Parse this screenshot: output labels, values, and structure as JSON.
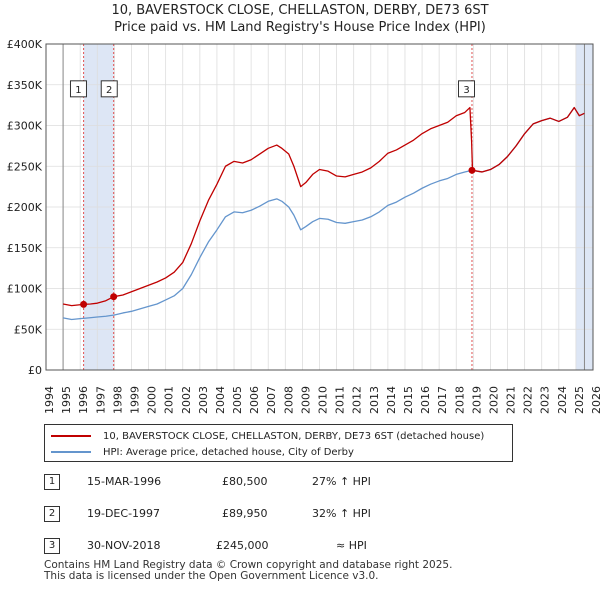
{
  "title_line1": "10, BAVERSTOCK CLOSE, CHELLASTON, DERBY, DE73 6ST",
  "title_line2": "Price paid vs. HM Land Registry's House Price Index (HPI)",
  "colors": {
    "price": "#c00000",
    "hpi": "#6495cd",
    "shade": "#dde6f5",
    "grid": "#dddddd"
  },
  "chart_data": {
    "type": "line",
    "title": "10, BAVERSTOCK CLOSE, CHELLASTON, DERBY, DE73 6ST — Price paid vs. HM Land Registry's House Price Index (HPI)",
    "xlim": [
      1994,
      2026
    ],
    "ylim": [
      0,
      400000
    ],
    "x_ticks": [
      "1994",
      "1995",
      "1996",
      "1997",
      "1998",
      "1999",
      "2000",
      "2001",
      "2002",
      "2003",
      "2004",
      "2005",
      "2006",
      "2007",
      "2008",
      "2009",
      "2010",
      "2011",
      "2012",
      "2013",
      "2014",
      "2015",
      "2016",
      "2017",
      "2018",
      "2019",
      "2020",
      "2021",
      "2022",
      "2023",
      "2024",
      "2025",
      "2026"
    ],
    "y_ticks": [
      {
        "value": 0,
        "label": "£0"
      },
      {
        "value": 50000,
        "label": "£50K"
      },
      {
        "value": 100000,
        "label": "£100K"
      },
      {
        "value": 150000,
        "label": "£150K"
      },
      {
        "value": 200000,
        "label": "£200K"
      },
      {
        "value": 250000,
        "label": "£250K"
      },
      {
        "value": 300000,
        "label": "£300K"
      },
      {
        "value": 350000,
        "label": "£350K"
      },
      {
        "value": 400000,
        "label": "£400K"
      }
    ],
    "data_start": 1995.0,
    "data_end": 2025.5,
    "shaded_ranges": [
      [
        1996.2,
        1997.96
      ],
      [
        2025.0,
        2026.0
      ]
    ],
    "series": [
      {
        "name": "10, BAVERSTOCK CLOSE, CHELLASTON, DERBY, DE73 6ST (detached house)",
        "color": "#c00000",
        "x": [
          1995.0,
          1995.5,
          1996.2,
          1996.6,
          1997.0,
          1997.5,
          1997.96,
          1998.5,
          1999.0,
          1999.5,
          2000.0,
          2000.5,
          2001.0,
          2001.5,
          2002.0,
          2002.5,
          2003.0,
          2003.5,
          2004.0,
          2004.5,
          2005.0,
          2005.5,
          2006.0,
          2006.5,
          2007.0,
          2007.5,
          2007.8,
          2008.2,
          2008.5,
          2008.9,
          2009.2,
          2009.6,
          2010.0,
          2010.5,
          2011.0,
          2011.5,
          2012.0,
          2012.5,
          2013.0,
          2013.5,
          2014.0,
          2014.5,
          2015.0,
          2015.5,
          2016.0,
          2016.5,
          2017.0,
          2017.5,
          2018.0,
          2018.5,
          2018.8,
          2018.9,
          2018.95,
          2019.5,
          2020.0,
          2020.5,
          2021.0,
          2021.5,
          2022.0,
          2022.5,
          2023.0,
          2023.5,
          2024.0,
          2024.5,
          2024.9,
          2025.2,
          2025.5
        ],
        "values": [
          81000,
          79000,
          80500,
          81000,
          82000,
          85000,
          89950,
          92000,
          96000,
          100000,
          104000,
          108000,
          113000,
          120000,
          132000,
          155000,
          183000,
          208000,
          228000,
          250000,
          256000,
          254000,
          258000,
          265000,
          272000,
          276000,
          272000,
          265000,
          250000,
          225000,
          230000,
          240000,
          246000,
          244000,
          238000,
          237000,
          240000,
          243000,
          248000,
          256000,
          266000,
          270000,
          276000,
          282000,
          290000,
          296000,
          300000,
          304000,
          312000,
          316000,
          322000,
          280000,
          245000,
          243000,
          246000,
          252000,
          262000,
          275000,
          290000,
          302000,
          306000,
          309000,
          305000,
          310000,
          322000,
          312000,
          315000
        ]
      },
      {
        "name": "HPI: Average price, detached house, City of Derby",
        "color": "#6495cd",
        "x": [
          1995.0,
          1995.5,
          1996.0,
          1996.5,
          1997.0,
          1997.5,
          1998.0,
          1998.5,
          1999.0,
          1999.5,
          2000.0,
          2000.5,
          2001.0,
          2001.5,
          2002.0,
          2002.5,
          2003.0,
          2003.5,
          2004.0,
          2004.5,
          2005.0,
          2005.5,
          2006.0,
          2006.5,
          2007.0,
          2007.5,
          2007.8,
          2008.2,
          2008.5,
          2008.9,
          2009.2,
          2009.6,
          2010.0,
          2010.5,
          2011.0,
          2011.5,
          2012.0,
          2012.5,
          2013.0,
          2013.5,
          2014.0,
          2014.5,
          2015.0,
          2015.5,
          2016.0,
          2016.5,
          2017.0,
          2017.5,
          2018.0,
          2018.5,
          2018.9,
          2019.5,
          2020.0,
          2020.5,
          2021.0,
          2021.5,
          2022.0,
          2022.5,
          2023.0,
          2023.5,
          2024.0,
          2024.5,
          2024.9,
          2025.2,
          2025.5
        ],
        "values": [
          64000,
          62000,
          63000,
          64000,
          65000,
          66000,
          67500,
          70000,
          72000,
          75000,
          78000,
          81000,
          86000,
          91000,
          100000,
          117000,
          138000,
          157000,
          172000,
          188000,
          194000,
          193000,
          196000,
          201000,
          207000,
          210000,
          207000,
          200000,
          190000,
          172000,
          176000,
          182000,
          186000,
          185000,
          181000,
          180000,
          182000,
          184000,
          188000,
          194000,
          202000,
          206000,
          212000,
          217000,
          223000,
          228000,
          232000,
          235000,
          240000,
          243000,
          245000,
          243000,
          246000,
          252000,
          262000,
          275000,
          290000,
          302000,
          306000,
          309000,
          305000,
          310000,
          322000,
          312000,
          315000
        ]
      }
    ],
    "sales": [
      {
        "id": "1",
        "x": 1996.2,
        "value": 80500
      },
      {
        "id": "2",
        "x": 1997.96,
        "value": 89950
      },
      {
        "id": "3",
        "x": 2018.92,
        "value": 245000
      }
    ],
    "label_boxes_top": [
      {
        "id": "1",
        "x": 1995.9,
        "value": 345000
      },
      {
        "id": "2",
        "x": 1997.7,
        "value": 345000
      },
      {
        "id": "3",
        "x": 2018.6,
        "value": 345000
      }
    ]
  },
  "legend": {
    "price_label": "10, BAVERSTOCK CLOSE, CHELLASTON, DERBY, DE73 6ST (detached house)",
    "hpi_label": "HPI: Average price, detached house, City of Derby"
  },
  "transactions": [
    {
      "num": "1",
      "date": "15-MAR-1996",
      "price": "£80,500",
      "hpi": "27% ↑ HPI"
    },
    {
      "num": "2",
      "date": "19-DEC-1997",
      "price": "£89,950",
      "hpi": "32% ↑ HPI"
    },
    {
      "num": "3",
      "date": "30-NOV-2018",
      "price": "£245,000",
      "hpi": "≈ HPI"
    }
  ],
  "footer_line1": "Contains HM Land Registry data © Crown copyright and database right 2025.",
  "footer_line2": "This data is licensed under the Open Government Licence v3.0."
}
